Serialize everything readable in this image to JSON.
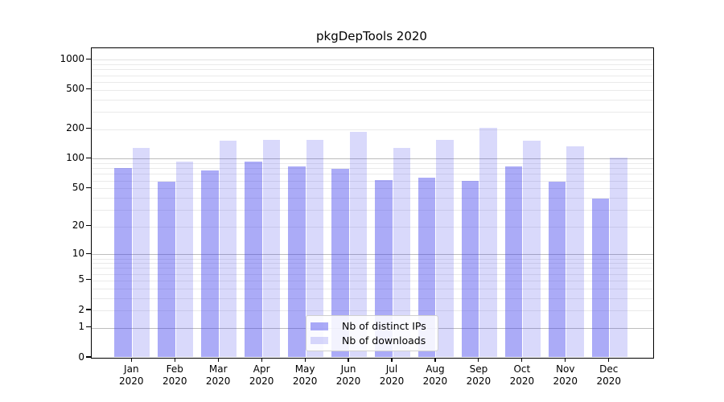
{
  "chart_data": {
    "type": "bar",
    "title": "pkgDepTools 2020",
    "scale": "log10(1+x)",
    "grid": true,
    "legend_position": "lower center",
    "categories": [
      "Jan",
      "Feb",
      "Mar",
      "Apr",
      "May",
      "Jun",
      "Jul",
      "Aug",
      "Sep",
      "Oct",
      "Nov",
      "Dec"
    ],
    "year_label": "2020",
    "series": [
      {
        "name": "Nb of distinct IPs",
        "color": "rgba(55,55,235,0.42)",
        "values": [
          80,
          58,
          76,
          94,
          84,
          79,
          61,
          64,
          59,
          84,
          58,
          39
        ]
      },
      {
        "name": "Nb of downloads",
        "color": "rgba(55,55,235,0.19)",
        "values": [
          130,
          94,
          152,
          156,
          154,
          186,
          130,
          155,
          207,
          153,
          134,
          103
        ]
      }
    ],
    "y_ticks": [
      0,
      1,
      2,
      5,
      10,
      20,
      50,
      100,
      200,
      500,
      1000
    ],
    "ylim": [
      0,
      1400
    ],
    "colors": {
      "grid_minor": "#eaeaea",
      "grid_major": "#bdbdbd",
      "grid_top_decade": "#e2e2e2",
      "axis": "#000000"
    }
  }
}
